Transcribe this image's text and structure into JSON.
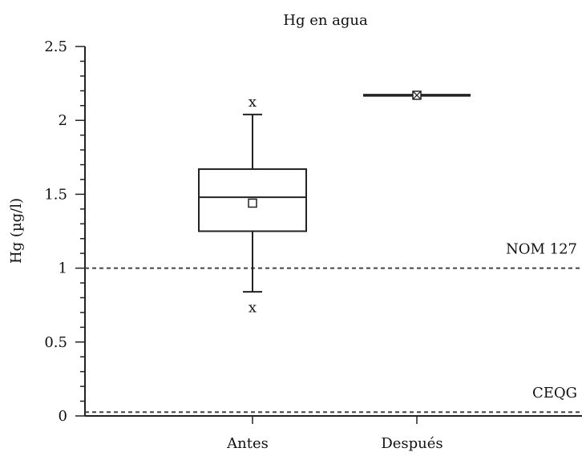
{
  "chart_data": {
    "type": "box",
    "title": "Hg en agua",
    "xlabel": "",
    "ylabel": "Hg (µg/l)",
    "ylim": [
      0,
      2.5
    ],
    "y_ticks": [
      "0",
      "0.5",
      "1",
      "1.5",
      "2",
      "2.5"
    ],
    "y_minor_step": 0.1,
    "grid": false,
    "categories": [
      "Antes",
      "Después"
    ],
    "boxes": [
      {
        "category": "Antes",
        "whisker_low": 0.84,
        "q1": 1.25,
        "median": 1.48,
        "q3": 1.67,
        "whisker_high": 2.04,
        "mean": 1.44,
        "outliers": [
          0.73,
          2.12
        ],
        "outlier_symbol": "x"
      },
      {
        "category": "Después",
        "whisker_low": 2.17,
        "q1": 2.17,
        "median": 2.17,
        "q3": 2.17,
        "whisker_high": 2.17,
        "mean": 2.17,
        "outliers": [],
        "outlier_symbol": "x"
      }
    ],
    "reference_lines": [
      {
        "label": "NOM 127",
        "value": 1.0
      },
      {
        "label": "CEQG",
        "value": 0.026
      }
    ],
    "colors": {
      "axis": "#222222",
      "box": "#222222",
      "refline": "#444444"
    }
  }
}
